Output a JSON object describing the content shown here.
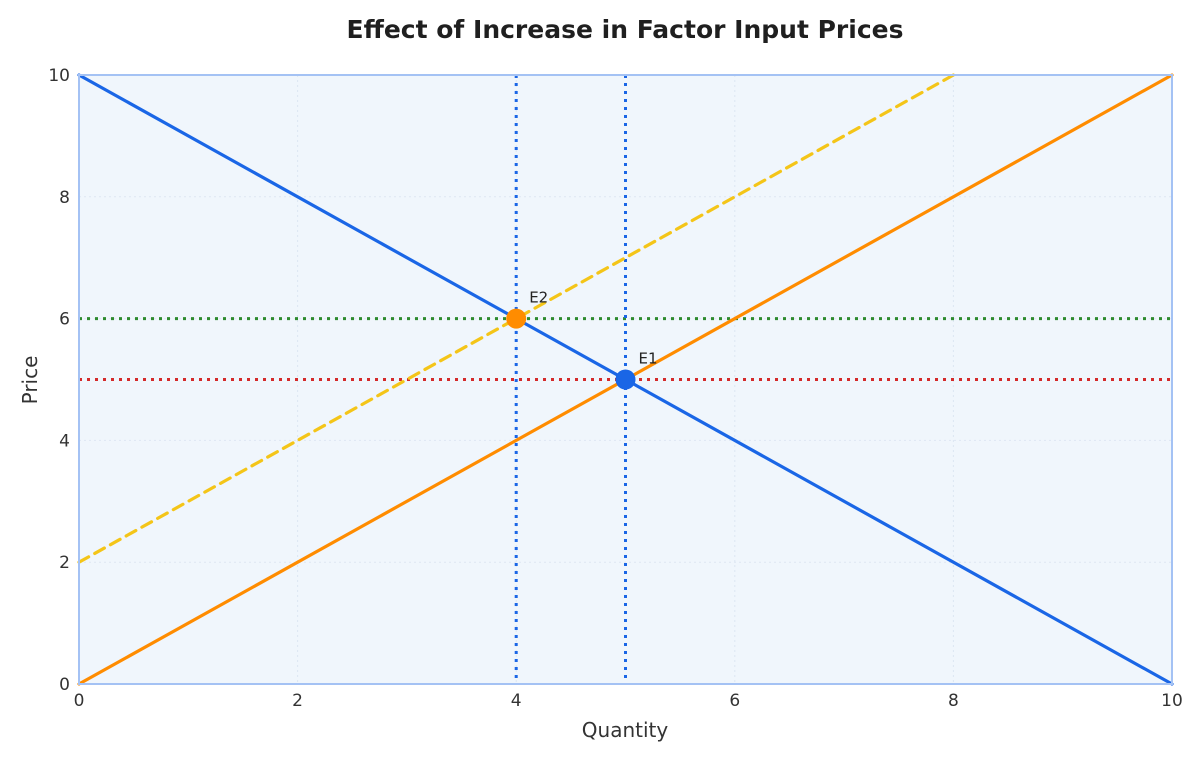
{
  "chart_data": {
    "type": "line",
    "title": "Effect of Increase in Factor Input Prices",
    "xlabel": "Quantity",
    "ylabel": "Price",
    "xlim": [
      0,
      10
    ],
    "ylim": [
      0,
      10
    ],
    "xticks": [
      0,
      2,
      4,
      6,
      8,
      10
    ],
    "yticks": [
      0,
      2,
      4,
      6,
      8,
      10
    ],
    "grid": true,
    "legend": "none",
    "background_color": "#f0f6fc",
    "frame_color": "#a4c2f4",
    "series": [
      {
        "id": "demand",
        "style": "solid",
        "color": "#1a66e6",
        "x": [
          0,
          10
        ],
        "y": [
          10,
          0
        ]
      },
      {
        "id": "supply-original",
        "style": "solid",
        "color": "#ff8c00",
        "x": [
          0,
          10
        ],
        "y": [
          0,
          10
        ]
      },
      {
        "id": "supply-shifted",
        "style": "dashed",
        "color": "#f4c518",
        "x": [
          0,
          8
        ],
        "y": [
          2,
          10
        ]
      }
    ],
    "reference_lines": [
      {
        "id": "price-e2",
        "orientation": "horizontal",
        "value": 6,
        "color": "#2e8b2e"
      },
      {
        "id": "price-e1",
        "orientation": "horizontal",
        "value": 5,
        "color": "#d42a2a"
      },
      {
        "id": "quantity-e2",
        "orientation": "vertical",
        "value": 4,
        "color": "#1a66e6"
      },
      {
        "id": "quantity-e1",
        "orientation": "vertical",
        "value": 5,
        "color": "#1a66e6"
      }
    ],
    "points": [
      {
        "label": "E2",
        "x": 4,
        "y": 6,
        "color": "#ff8c00"
      },
      {
        "label": "E1",
        "x": 5,
        "y": 5,
        "color": "#1a66e6"
      }
    ]
  }
}
